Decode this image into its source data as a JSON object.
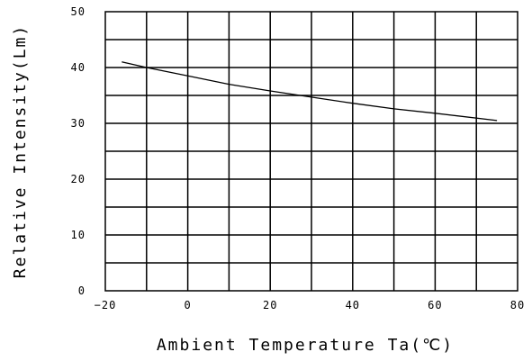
{
  "chart_data": {
    "type": "line",
    "title": "",
    "xlabel": "Ambient Temperature Ta(℃)",
    "ylabel": "Relative Intensity(Lm)",
    "xlim": [
      -20,
      80
    ],
    "ylim": [
      0,
      50
    ],
    "xticks": [
      "-20",
      "0",
      "20",
      "40",
      "60",
      "80"
    ],
    "yticks": [
      "0",
      "10",
      "20",
      "30",
      "40",
      "50"
    ],
    "grid": true,
    "legend": "none",
    "line_color": "#000000",
    "series": [
      {
        "x": [
          -16,
          -10,
          0,
          10,
          20,
          30,
          40,
          50,
          60,
          75
        ],
        "y": [
          41,
          40.0,
          38.5,
          37.0,
          35.8,
          34.7,
          33.6,
          32.6,
          31.8,
          30.5
        ]
      }
    ]
  }
}
